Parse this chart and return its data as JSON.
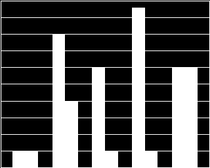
{
  "series1": [
    0.5,
    4.0,
    3.0,
    4.8,
    3.0
  ],
  "series2": [
    0.5,
    2.0,
    0.5,
    0.5,
    3.0
  ],
  "ylim": [
    0,
    5
  ],
  "yticks": [
    0,
    0.5,
    1,
    1.5,
    2,
    2.5,
    3,
    3.5,
    4,
    4.5,
    5
  ],
  "bar_color": "#ffffff",
  "bg_color": "#000000",
  "grid_color": "#ffffff",
  "bar_width": 0.32,
  "figsize": [
    3.04,
    2.43
  ],
  "dpi": 100,
  "n_groups": 5
}
